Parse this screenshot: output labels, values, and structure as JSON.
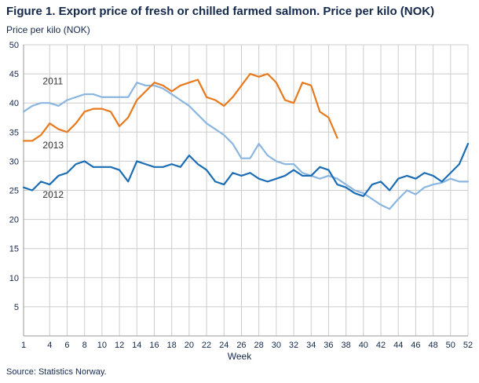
{
  "figure": {
    "title": "Figure 1. Export price of fresh or chilled farmed salmon. Price per kilo (NOK)",
    "y_axis_title": "Price per kilo (NOK)",
    "x_axis_title": "Week",
    "source": "Source: Statistics Norway."
  },
  "chart_data": {
    "type": "line",
    "title": "Figure 1. Export price of fresh or chilled farmed salmon. Price per kilo (NOK)",
    "xlabel": "Week",
    "ylabel": "Price per kilo (NOK)",
    "xlim": [
      1,
      52
    ],
    "ylim": [
      0,
      50
    ],
    "x_ticks": [
      1,
      4,
      6,
      8,
      10,
      12,
      14,
      16,
      18,
      20,
      22,
      24,
      26,
      28,
      30,
      32,
      34,
      36,
      38,
      40,
      42,
      44,
      46,
      48,
      50,
      52
    ],
    "y_ticks": [
      5,
      10,
      15,
      20,
      25,
      30,
      35,
      40,
      45,
      50
    ],
    "grid": true,
    "legend_position": "inline-labels",
    "colors": {
      "grid": "#cccccc",
      "axis": "#999999",
      "tick_text": "#14284b"
    },
    "series": [
      {
        "name": "2011",
        "color": "#8ab6e0",
        "start_week": 1,
        "values": [
          38.5,
          39.5,
          40,
          40,
          39.5,
          40.5,
          41,
          41.5,
          41.5,
          41,
          41,
          41,
          41,
          43.5,
          43,
          43,
          42.5,
          41.5,
          40.5,
          39.5,
          38,
          36.5,
          35.5,
          34.5,
          33,
          30.5,
          30.5,
          33,
          31,
          30,
          29.5,
          29.5,
          28,
          27.5,
          27,
          27.5,
          27,
          26,
          25,
          24.5,
          23.5,
          22.5,
          21.8,
          23.5,
          25,
          24.3,
          25.5,
          26,
          26.3,
          27,
          26.5,
          26.5
        ],
        "label_week": 3.2,
        "label_value": 43.2
      },
      {
        "name": "2013",
        "color": "#e8791d",
        "start_week": 1,
        "values": [
          33.5,
          33.5,
          34.5,
          36.5,
          35.5,
          35,
          36.5,
          38.5,
          39,
          39,
          38.5,
          36,
          37.5,
          40.5,
          42,
          43.5,
          43,
          42,
          43,
          43.5,
          44,
          41,
          40.5,
          39.5,
          41,
          43,
          45,
          44.5,
          45,
          43.5,
          40.5,
          40,
          43.5,
          43,
          38.5,
          37.5,
          34
        ],
        "label_week": 3.2,
        "label_value": 32.2
      },
      {
        "name": "2012",
        "color": "#1a6db5",
        "start_week": 1,
        "values": [
          25.5,
          25,
          26.5,
          26,
          27.5,
          28,
          29.5,
          30,
          29,
          29,
          29,
          28.5,
          26.5,
          30,
          29.5,
          29,
          29,
          29.5,
          29,
          31,
          29.5,
          28.5,
          26.5,
          26,
          28,
          27.5,
          28,
          27,
          26.5,
          27,
          27.5,
          28.5,
          27.5,
          27.5,
          29,
          28.5,
          26,
          25.5,
          24.5,
          24,
          26,
          26.5,
          25,
          27,
          27.5,
          27,
          28,
          27.5,
          26.5,
          28,
          29.5,
          33
        ],
        "label_week": 3.2,
        "label_value": 23.7
      }
    ]
  }
}
